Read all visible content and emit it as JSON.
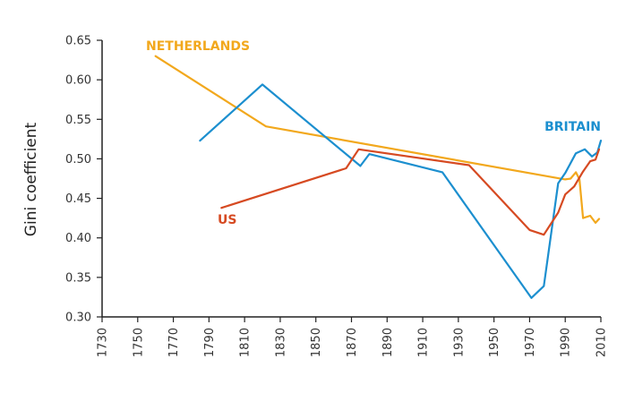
{
  "chart_data": {
    "type": "line",
    "title": "",
    "xlabel": "",
    "ylabel": "Gini coefficient",
    "xlim": [
      1730,
      2010
    ],
    "ylim": [
      0.3,
      0.65
    ],
    "x_ticks": [
      1730,
      1750,
      1770,
      1790,
      1810,
      1830,
      1850,
      1870,
      1890,
      1910,
      1930,
      1950,
      1970,
      1990,
      2010
    ],
    "y_ticks": [
      0.3,
      0.35,
      0.4,
      0.45,
      0.5,
      0.55,
      0.6,
      0.65
    ],
    "y_tick_labels": [
      "0.30",
      "0.35",
      "0.40",
      "0.45",
      "0.50",
      "0.55",
      "0.60",
      "0.65"
    ],
    "grid": false,
    "series": [
      {
        "name": "NETHERLANDS",
        "color": "#F2A81D",
        "label_color": "#F2A81D",
        "points": [
          [
            1760,
            0.63
          ],
          [
            1822,
            0.541
          ],
          [
            1990,
            0.474
          ],
          [
            1993,
            0.475
          ],
          [
            1996,
            0.483
          ],
          [
            1998,
            0.474
          ],
          [
            2000,
            0.425
          ],
          [
            2004,
            0.428
          ],
          [
            2007,
            0.419
          ],
          [
            2009,
            0.424
          ]
        ]
      },
      {
        "name": "BRITAIN",
        "color": "#1C8FCF",
        "label_color": "#1C8FCF",
        "points": [
          [
            1785,
            0.523
          ],
          [
            1820,
            0.594
          ],
          [
            1875,
            0.491
          ],
          [
            1880,
            0.506
          ],
          [
            1921,
            0.483
          ],
          [
            1971,
            0.324
          ],
          [
            1978,
            0.339
          ],
          [
            1986,
            0.469
          ],
          [
            1990,
            0.482
          ],
          [
            1996,
            0.507
          ],
          [
            2001,
            0.512
          ],
          [
            2005,
            0.503
          ],
          [
            2008,
            0.508
          ],
          [
            2010,
            0.523
          ]
        ]
      },
      {
        "name": "US",
        "color": "#D64A22",
        "label_color": "#D64A22",
        "points": [
          [
            1797,
            0.438
          ],
          [
            1867,
            0.488
          ],
          [
            1874,
            0.512
          ],
          [
            1936,
            0.492
          ],
          [
            1970,
            0.41
          ],
          [
            1978,
            0.404
          ],
          [
            1986,
            0.432
          ],
          [
            1990,
            0.455
          ],
          [
            1995,
            0.465
          ],
          [
            2000,
            0.484
          ],
          [
            2004,
            0.497
          ],
          [
            2007,
            0.499
          ],
          [
            2009,
            0.512
          ]
        ]
      }
    ]
  }
}
